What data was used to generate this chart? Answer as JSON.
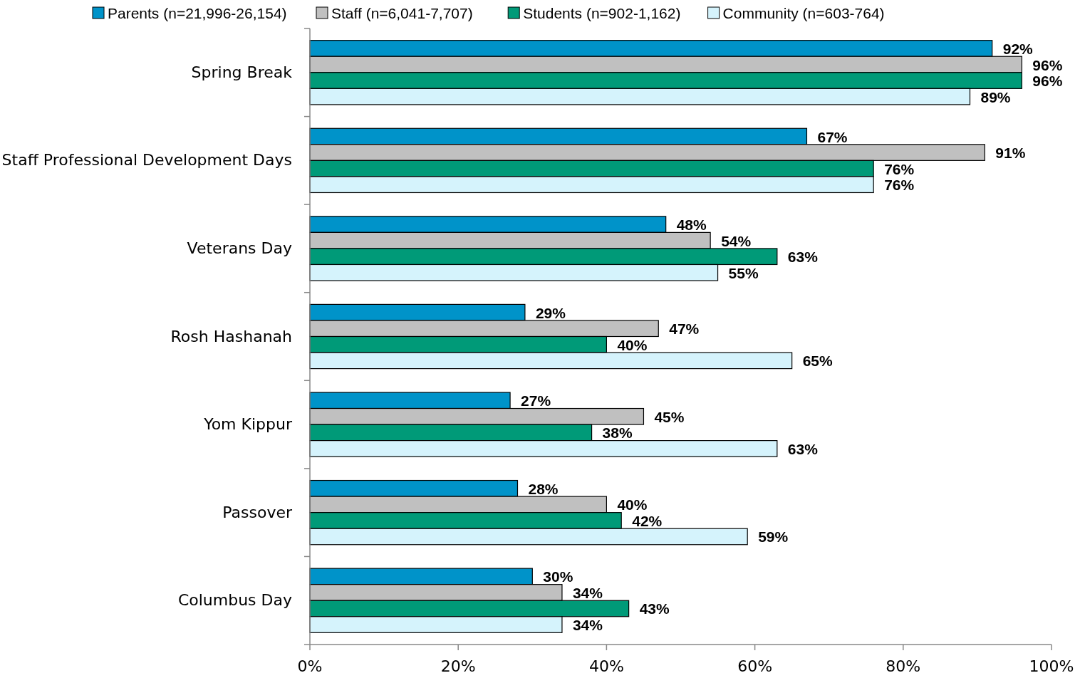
{
  "chart_data": {
    "type": "bar",
    "orientation": "horizontal",
    "categories": [
      "Spring Break",
      "Staff Professional Development Days",
      "Veterans Day",
      "Rosh Hashanah",
      "Yom Kippur",
      "Passover",
      "Columbus Day"
    ],
    "series": [
      {
        "name": "Parents (n=21,996-26,154)",
        "color": "#0093c9",
        "values": [
          92,
          67,
          48,
          29,
          27,
          28,
          30
        ],
        "value_labels": [
          "92%",
          "67%",
          "48%",
          "29%",
          "27%",
          "28%",
          "30%"
        ]
      },
      {
        "name": "Staff (n=6,041-7,707)",
        "color": "#c0c0c0",
        "values": [
          96,
          91,
          54,
          47,
          45,
          40,
          34
        ],
        "value_labels": [
          "96%",
          "91%",
          "54%",
          "47%",
          "45%",
          "40%",
          "34%"
        ]
      },
      {
        "name": "Students (n=902-1,162)",
        "color": "#009a78",
        "values": [
          96,
          76,
          63,
          40,
          38,
          42,
          43
        ],
        "value_labels": [
          "96%",
          "76%",
          "63%",
          "40%",
          "38%",
          "42%",
          "43%"
        ]
      },
      {
        "name": "Community (n=603-764)",
        "color": "#d5f3fc",
        "values": [
          89,
          76,
          55,
          65,
          63,
          59,
          34
        ],
        "value_labels": [
          "89%",
          "76%",
          "55%",
          "65%",
          "63%",
          "59%",
          "34%"
        ]
      }
    ],
    "xlim": [
      0,
      100
    ],
    "xticks": [
      {
        "value": 0,
        "label": "0%"
      },
      {
        "value": 20,
        "label": "20%"
      },
      {
        "value": 40,
        "label": "40%"
      },
      {
        "value": 60,
        "label": "60%"
      },
      {
        "value": 80,
        "label": "80%"
      },
      {
        "value": 100,
        "label": "100%"
      }
    ],
    "grid": false,
    "legend": "top"
  }
}
